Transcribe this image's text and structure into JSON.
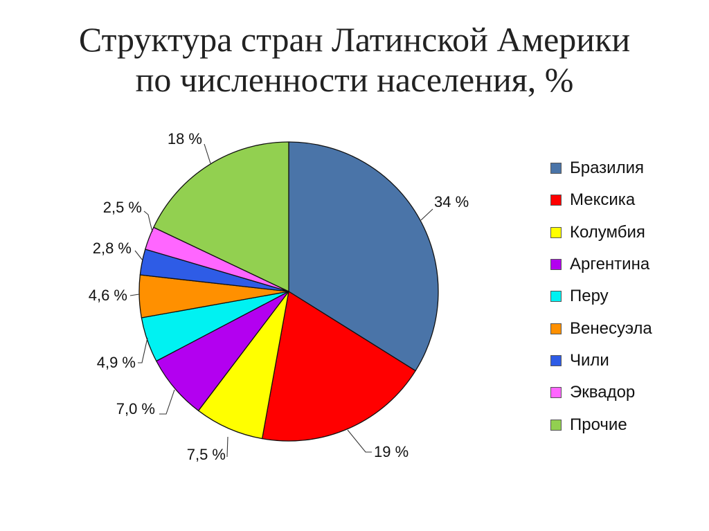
{
  "title": {
    "line1": "Структура стран Латинской Америки",
    "line2": "по численности населения, %"
  },
  "chart_data": {
    "type": "pie",
    "title": "Структура стран Латинской Америки по численности населения, %",
    "legend_placement": "right",
    "start_angle": "top, clockwise",
    "slices": [
      {
        "name": "Бразилия",
        "value": 34,
        "label": "34 %",
        "color": "#4A74A8"
      },
      {
        "name": "Мексика",
        "value": 19,
        "label": "19 %",
        "color": "#FF0000"
      },
      {
        "name": "Колумбия",
        "value": 7.5,
        "label": "7,5 %",
        "color": "#FFFF00"
      },
      {
        "name": "Аргентина",
        "value": 7.0,
        "label": "7,0 %",
        "color": "#B300F0"
      },
      {
        "name": "Перу",
        "value": 4.9,
        "label": "4,9 %",
        "color": "#00F2F2"
      },
      {
        "name": "Венесуэла",
        "value": 4.6,
        "label": "4,6 %",
        "color": "#FF9000"
      },
      {
        "name": "Чили",
        "value": 2.8,
        "label": "2,8 %",
        "color": "#2E5CE6"
      },
      {
        "name": "Эквадор",
        "value": 2.5,
        "label": "2,5 %",
        "color": "#FF66FF"
      },
      {
        "name": "Прочие",
        "value": 18,
        "label": "18 %",
        "color": "#92D050"
      }
    ]
  }
}
